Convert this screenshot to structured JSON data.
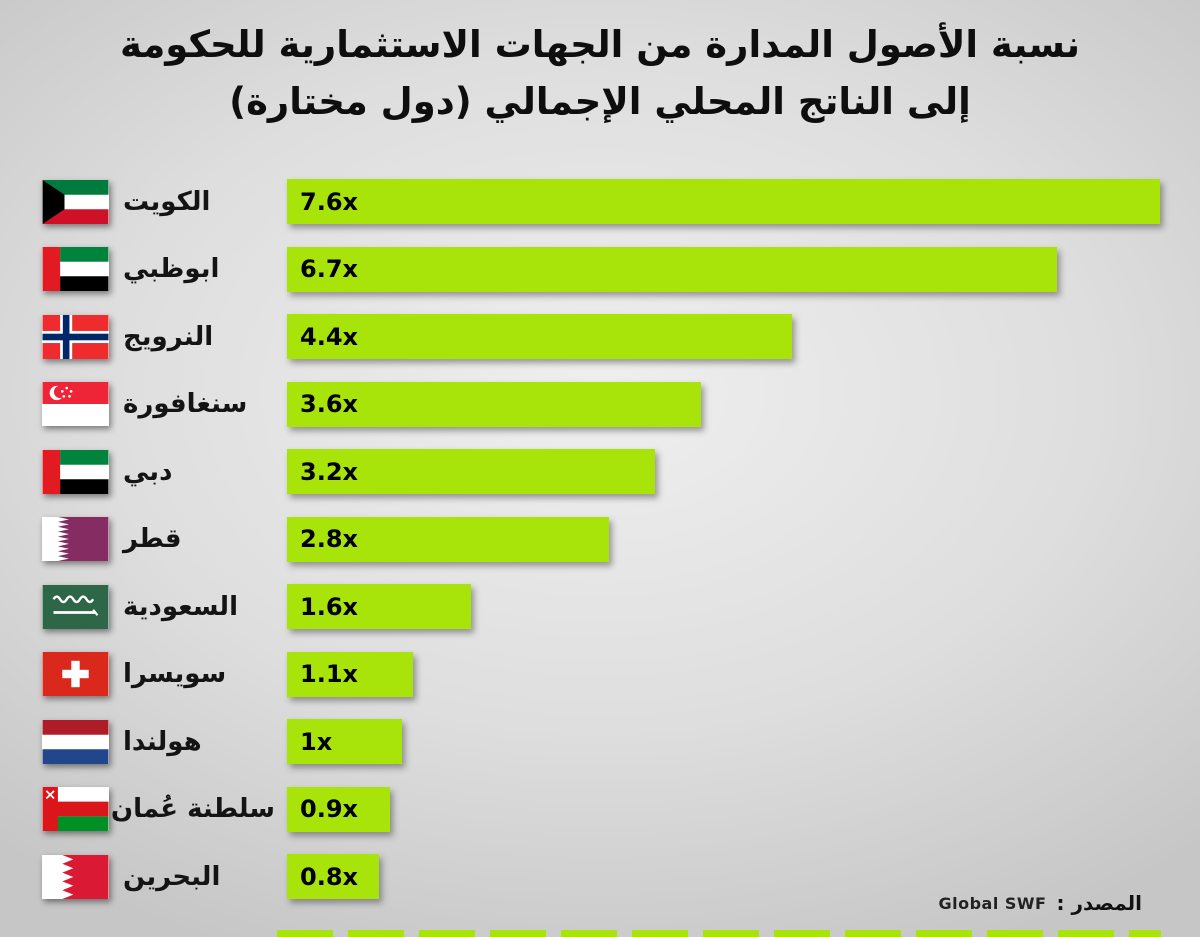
{
  "title": {
    "line1": "نسبة الأصول المدارة من الجهات الاستثمارية للحكومة",
    "line2": "إلى الناتج المحلي الإجمالي (دول مختارة)"
  },
  "source": {
    "label": "المصدر :",
    "value": "Global SWF"
  },
  "chart_data": {
    "type": "bar",
    "orientation": "horizontal",
    "title": "نسبة الأصول المدارة من الجهات الاستثمارية للحكومة إلى الناتج المحلي الإجمالي (دول مختارة)",
    "categories": [
      "الكويت",
      "ابوظبي",
      "النرويج",
      "سنغافورة",
      "دبي",
      "قطر",
      "السعودية",
      "سويسرا",
      "هولندا",
      "سلطنة عُمان",
      "البحرين"
    ],
    "values": [
      7.6,
      6.7,
      4.4,
      3.6,
      3.2,
      2.8,
      1.6,
      1.1,
      1,
      0.9,
      0.8
    ],
    "value_labels": [
      "7.6x",
      "6.7x",
      "4.4x",
      "3.6x",
      "3.2x",
      "2.8x",
      "1.6x",
      "1.1x",
      "1x",
      "0.9x",
      "0.8x"
    ],
    "flags": [
      "kuwait",
      "abu-dhabi",
      "norway",
      "singapore",
      "dubai",
      "qatar",
      "saudi-arabia",
      "switzerland",
      "netherlands",
      "oman",
      "bahrain"
    ],
    "bar_color": "#a8e40a",
    "xlim": [
      0,
      7.6
    ],
    "grid": false,
    "legend": "none"
  }
}
